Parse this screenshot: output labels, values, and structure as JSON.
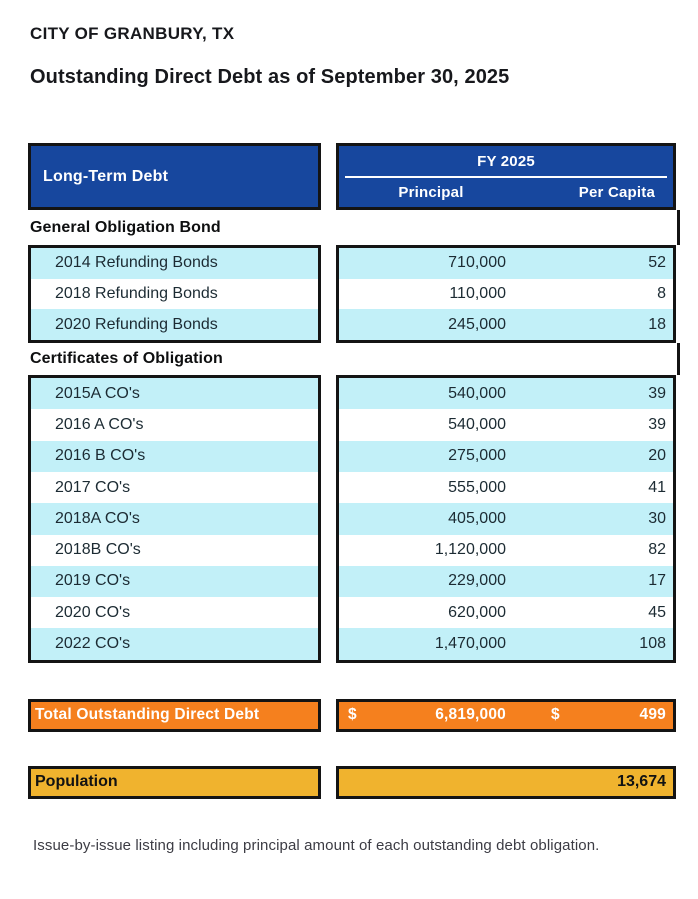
{
  "page": {
    "title": "CITY OF GRANBURY, TX",
    "subtitle": "Outstanding Direct Debt as of September 30, 2025",
    "footnote": "Issue-by-issue listing including principal amount of each outstanding debt obligation."
  },
  "table": {
    "header": {
      "left_label": "Long-Term Debt",
      "fy_label": "FY 2025",
      "col_principal": "Principal",
      "col_per_capita": "Per Capita"
    },
    "sections": [
      {
        "label": "General Obligation Bond",
        "rows": [
          {
            "name": "2014 Refunding Bonds",
            "principal": "710,000",
            "per_capita": "52"
          },
          {
            "name": "2018 Refunding Bonds",
            "principal": "110,000",
            "per_capita": "8"
          },
          {
            "name": "2020 Refunding Bonds",
            "principal": "245,000",
            "per_capita": "18"
          }
        ]
      },
      {
        "label": "Certificates of Obligation",
        "rows": [
          {
            "name": "2015A CO's",
            "principal": "540,000",
            "per_capita": "39"
          },
          {
            "name": "2016 A CO's",
            "principal": "540,000",
            "per_capita": "39"
          },
          {
            "name": "2016 B CO's",
            "principal": "275,000",
            "per_capita": "20"
          },
          {
            "name": "2017 CO's",
            "principal": "555,000",
            "per_capita": "41"
          },
          {
            "name": "2018A CO's",
            "principal": "405,000",
            "per_capita": "30"
          },
          {
            "name": "2018B CO's",
            "principal": "1,120,000",
            "per_capita": "82"
          },
          {
            "name": "2019 CO's",
            "principal": "229,000",
            "per_capita": "17"
          },
          {
            "name": "2020 CO's",
            "principal": "620,000",
            "per_capita": "45"
          },
          {
            "name": "2022 CO's",
            "principal": "1,470,000",
            "per_capita": "108"
          }
        ]
      }
    ],
    "total": {
      "label": "Total Outstanding Direct Debt",
      "currency_symbol": "$",
      "principal": "6,819,000",
      "per_capita": "499"
    },
    "population": {
      "label": "Population",
      "value": "13,674"
    }
  },
  "colors": {
    "header_blue": "#17479E",
    "row_light_blue": "#C2F0F8",
    "total_orange": "#F5801E",
    "population_gold": "#F0B32E",
    "border_black": "#141414",
    "text_dark": "#1C2B33"
  }
}
